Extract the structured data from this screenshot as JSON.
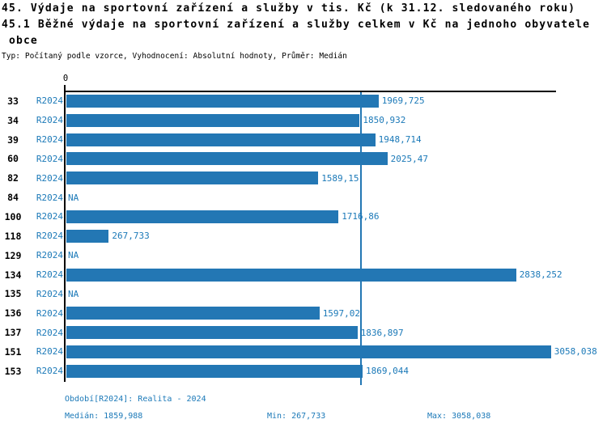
{
  "header": {
    "title_line1": "45. Výdaje na sportovní zařízení a služby v tis. Kč (k 31.12. sledovaného roku)",
    "title_line2": "45.1 Běžné výdaje na sportovní zařízení a služby celkem v Kč na jednoho obyvatele",
    "title_line3": "obce",
    "meta": "Typ: Počítaný podle vzorce, Vyhodnocení: Absolutní hodnoty, Průměr: Medián"
  },
  "chart_data": {
    "type": "bar",
    "orientation": "horizontal",
    "title": "45.1 Běžné výdaje na sportovní zařízení a služby celkem v Kč na jednoho obyvatele obce",
    "axis_zero_label": "0",
    "categories": [
      "33",
      "34",
      "39",
      "60",
      "82",
      "84",
      "100",
      "118",
      "129",
      "134",
      "135",
      "136",
      "137",
      "151",
      "153"
    ],
    "series": [
      {
        "name": "R2024",
        "values": [
          1969.725,
          1850.932,
          1948.714,
          2025.47,
          1589.15,
          null,
          1716.86,
          267.733,
          null,
          2838.252,
          null,
          1597.02,
          1836.897,
          3058.038,
          1869.044
        ]
      }
    ],
    "value_labels": [
      "1969,725",
      "1850,932",
      "1948,714",
      "2025,47",
      "1589,15",
      "NA",
      "1716,86",
      "267,733",
      "NA",
      "2838,252",
      "NA",
      "1597,02",
      "1836,897",
      "3058,038",
      "1869,044"
    ],
    "na_label": "NA",
    "xlim": [
      0,
      3100
    ],
    "grid": false,
    "legend_position": "none",
    "median_value": 1859.988,
    "colors": {
      "bar": "#2377B4",
      "median_line": "#2377B4",
      "accent_text": "#1B79B8",
      "axis": "#000000"
    }
  },
  "footer": {
    "period_info": "Období[R2024]: Realita - 2024",
    "median": "Medián: 1859,988",
    "min": "Min: 267,733",
    "max": "Max: 3058,038"
  }
}
